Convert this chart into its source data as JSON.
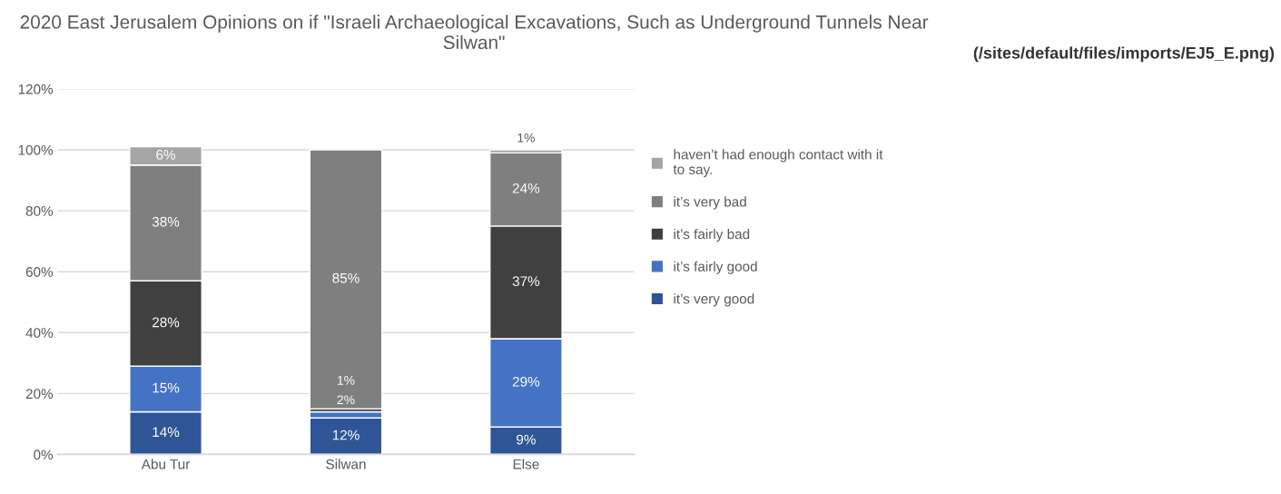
{
  "chart_data": {
    "type": "bar",
    "stacked": true,
    "title": "2020 East Jerusalem Opinions on if \"Israeli Archaeological Excavations, Such as Underground Tunnels Near Silwan\"",
    "categories": [
      "Abu Tur",
      "Silwan",
      "Else"
    ],
    "series": [
      {
        "name": "it’s very good",
        "color": "#2f5597",
        "values": [
          14,
          12,
          9
        ],
        "value_labels": [
          "14%",
          "12%",
          "9%"
        ]
      },
      {
        "name": "it’s fairly good",
        "color": "#4472c4",
        "values": [
          15,
          2,
          29
        ],
        "value_labels": [
          "15%",
          "2%",
          "29%"
        ]
      },
      {
        "name": "it’s fairly bad",
        "color": "#404040",
        "values": [
          28,
          1,
          37
        ],
        "value_labels": [
          "28%",
          "1%",
          "37%"
        ]
      },
      {
        "name": "it’s very bad",
        "color": "#7f7f7f",
        "values": [
          38,
          85,
          24
        ],
        "value_labels": [
          "38%",
          "85%",
          "24%"
        ]
      },
      {
        "name": "haven’t had enough contact with it to say.",
        "color": "#a5a5a5",
        "values": [
          6,
          null,
          1
        ],
        "value_labels": [
          "6%",
          null,
          "1%"
        ]
      }
    ],
    "ylim": [
      0,
      120
    ],
    "yticks": [
      {
        "value": 0,
        "label": "0%"
      },
      {
        "value": 20,
        "label": "20%"
      },
      {
        "value": 40,
        "label": "40%"
      },
      {
        "value": 60,
        "label": "60%"
      },
      {
        "value": 80,
        "label": "80%"
      },
      {
        "value": 100,
        "label": "100%"
      },
      {
        "value": 120,
        "label": "120%"
      }
    ],
    "grid": "y",
    "legend": "right",
    "annotations": [
      "(/sites/default/files/imports/EJ5_E.png)"
    ]
  }
}
